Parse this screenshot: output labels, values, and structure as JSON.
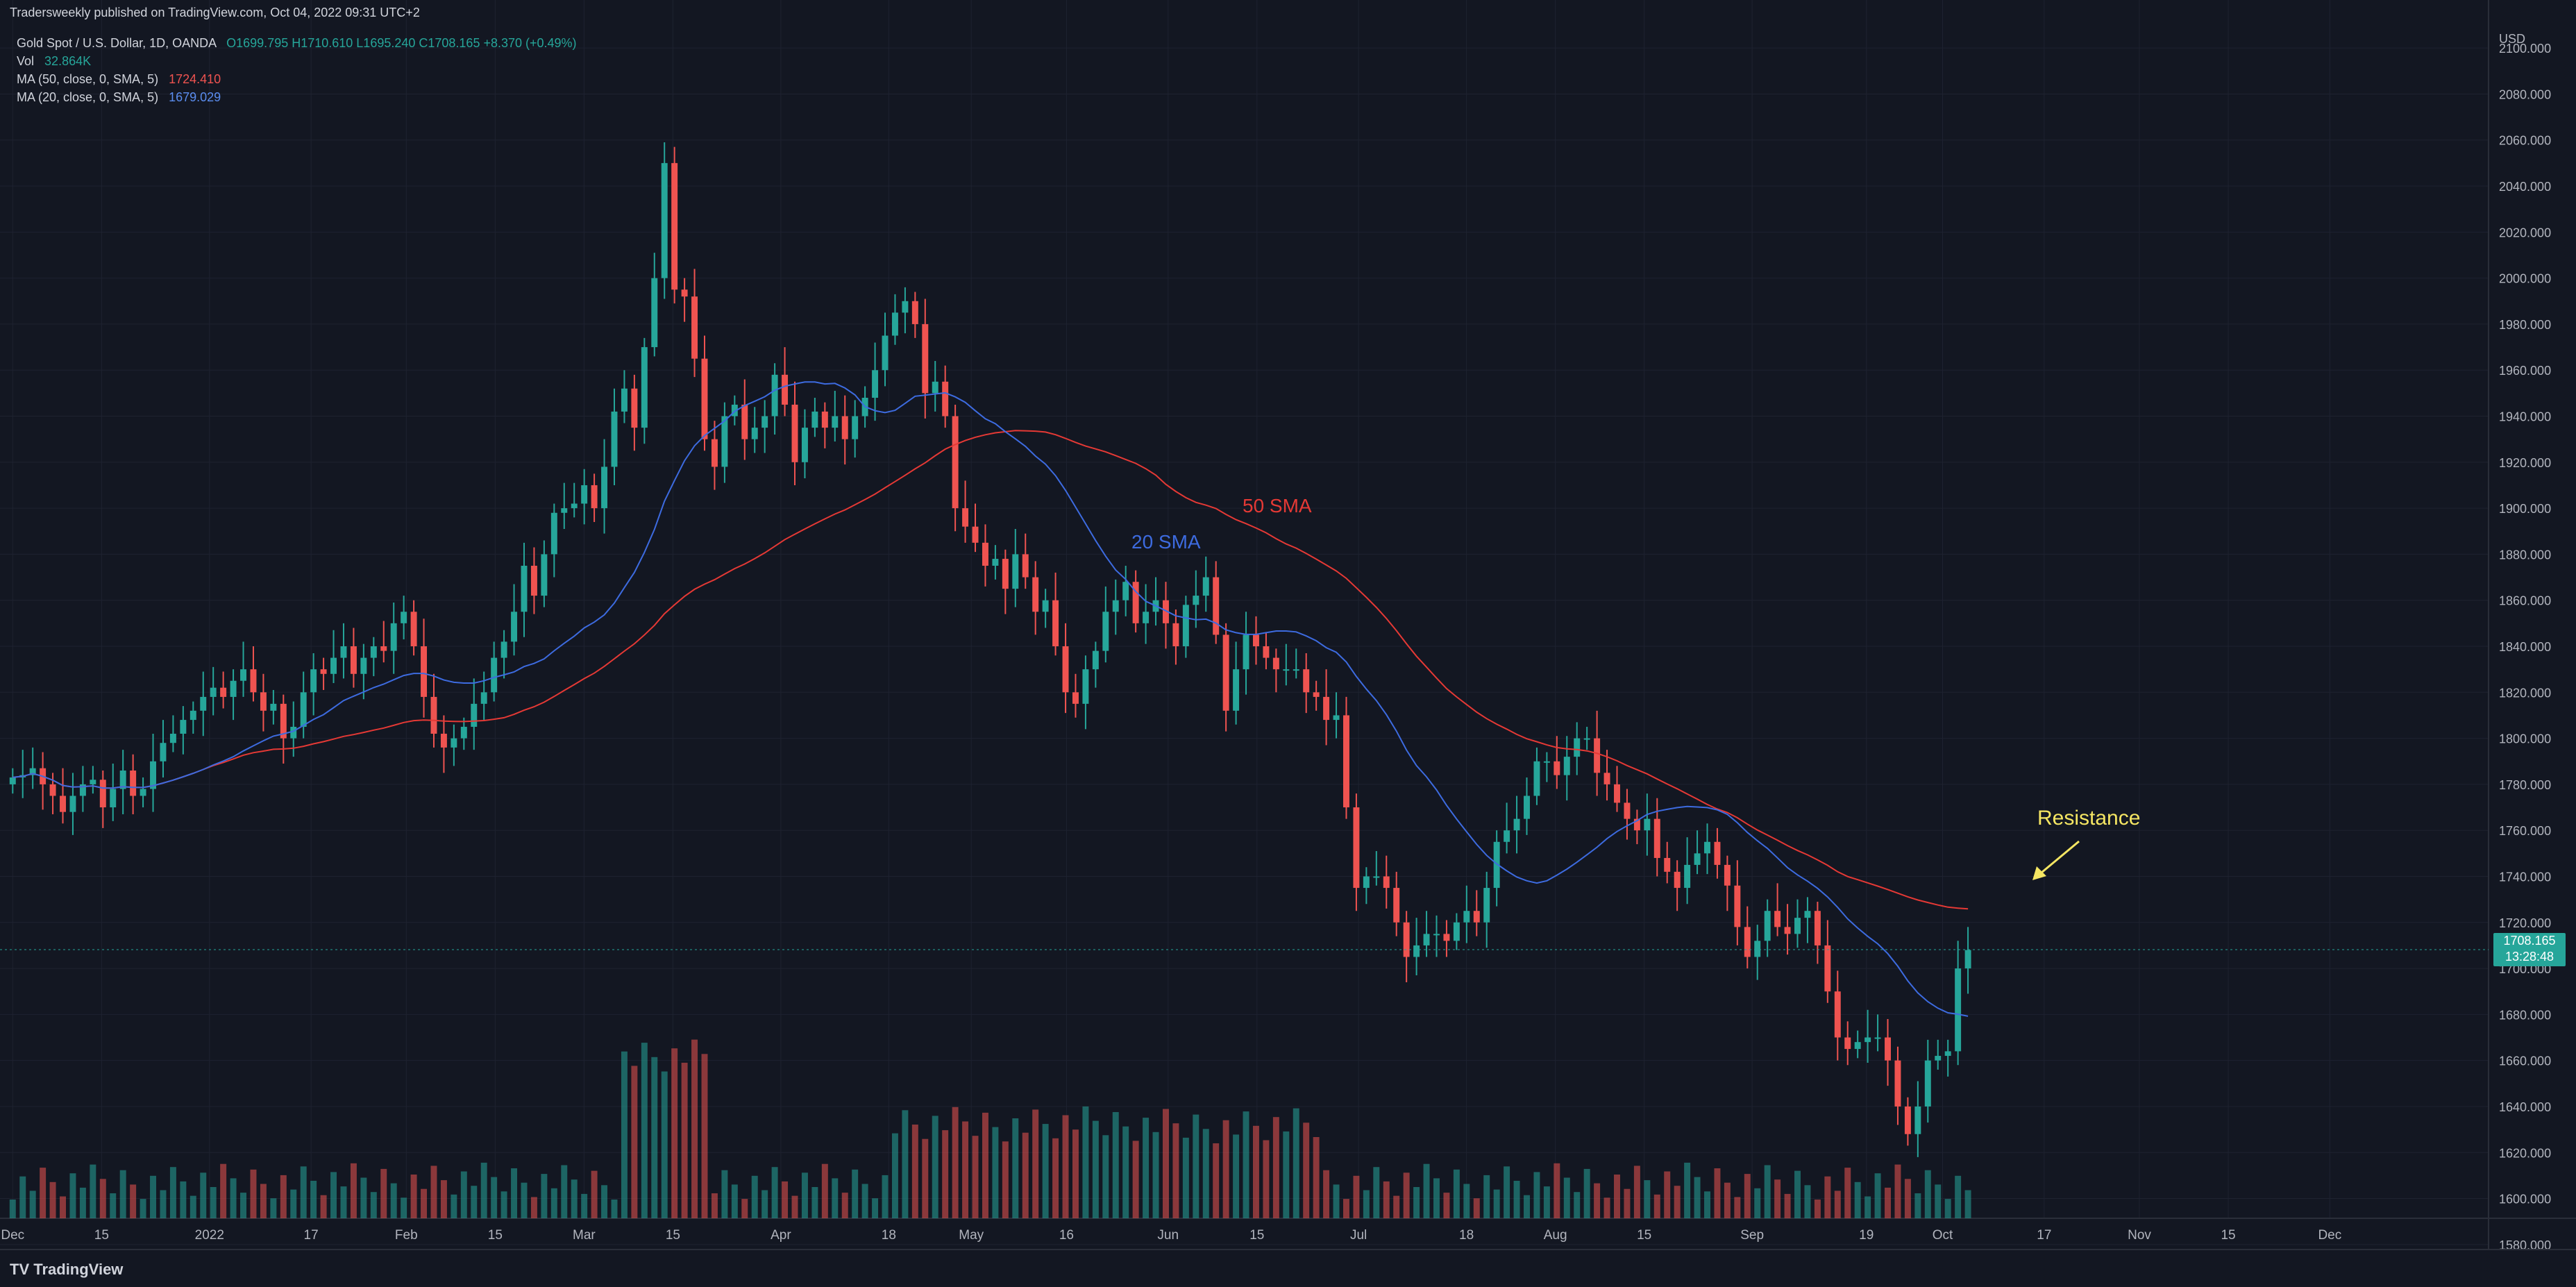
{
  "header": {
    "published": "Tradersweekly published on TradingView.com, Oct 04, 2022 09:31 UTC+2",
    "symbol": "Gold Spot / U.S. Dollar, 1D, OANDA",
    "ohlc": "O1699.795 H1710.610 L1695.240 C1708.165 +8.370 (+0.49%)"
  },
  "indicators": {
    "vol_label": "Vol",
    "vol_value": "32.864K",
    "ma50_label": "MA (50, close, 0, SMA, 5)",
    "ma50_value": "1724.410",
    "ma20_label": "MA (20, close, 0, SMA, 5)",
    "ma20_value": "1679.029"
  },
  "colors": {
    "up": "#26a69a",
    "down": "#ef5350",
    "ma50": "#e53935",
    "ma20": "#3d6be0",
    "annot": "#f5e663",
    "bg": "#131722"
  },
  "price_axis": {
    "currency": "USD",
    "ticks": [
      "2100.000",
      "2080.000",
      "2060.000",
      "2040.000",
      "2020.000",
      "2000.000",
      "1980.000",
      "1960.000",
      "1940.000",
      "1920.000",
      "1900.000",
      "1880.000",
      "1860.000",
      "1840.000",
      "1820.000",
      "1800.000",
      "1780.000",
      "1760.000",
      "1740.000",
      "1720.000",
      "1700.000",
      "1680.000",
      "1660.000",
      "1640.000",
      "1620.000",
      "1600.000",
      "1580.000"
    ],
    "last_price": "1708.165",
    "countdown": "13:28:48"
  },
  "time_axis": {
    "labels": [
      "Dec",
      "15",
      "2022",
      "17",
      "Feb",
      "15",
      "Mar",
      "15",
      "Apr",
      "18",
      "May",
      "16",
      "Jun",
      "15",
      "Jul",
      "18",
      "Aug",
      "15",
      "Sep",
      "19",
      "Oct",
      "17",
      "Nov",
      "15",
      "Dec"
    ]
  },
  "annotations": {
    "sma20": "20 SMA",
    "sma50": "50 SMA",
    "resistance": "Resistance"
  },
  "brand": "TradingView",
  "chart_data": {
    "type": "candlestick",
    "ylim": [
      1570,
      2110
    ],
    "x_range_days": [
      -2,
      390
    ],
    "x_axis_dates": [
      "Dec",
      "15",
      "2022",
      "17",
      "Feb",
      "15",
      "Mar",
      "15",
      "Apr",
      "18",
      "May",
      "16",
      "Jun",
      "15",
      "Jul",
      "18",
      "Aug",
      "15",
      "Sep",
      "19",
      "Oct",
      "17",
      "Nov",
      "15",
      "Dec"
    ],
    "x_axis_days": [
      0,
      14,
      31,
      47,
      62,
      76,
      90,
      104,
      121,
      138,
      151,
      166,
      182,
      196,
      212,
      229,
      243,
      257,
      274,
      292,
      304,
      320,
      335,
      349,
      365
    ],
    "closes": [
      1783,
      1784,
      1787,
      1780,
      1775,
      1768,
      1775,
      1780,
      1782,
      1770,
      1778,
      1786,
      1775,
      1778,
      1790,
      1798,
      1802,
      1808,
      1812,
      1818,
      1822,
      1818,
      1825,
      1830,
      1820,
      1812,
      1815,
      1800,
      1805,
      1820,
      1830,
      1828,
      1835,
      1840,
      1828,
      1835,
      1840,
      1838,
      1850,
      1855,
      1840,
      1818,
      1802,
      1796,
      1800,
      1805,
      1815,
      1820,
      1835,
      1842,
      1855,
      1875,
      1862,
      1880,
      1898,
      1900,
      1902,
      1910,
      1900,
      1918,
      1942,
      1952,
      1935,
      1970,
      2000,
      2050,
      1995,
      1992,
      1965,
      1930,
      1918,
      1940,
      1945,
      1930,
      1935,
      1940,
      1958,
      1945,
      1920,
      1935,
      1942,
      1935,
      1940,
      1930,
      1940,
      1948,
      1960,
      1975,
      1985,
      1990,
      1980,
      1950,
      1955,
      1940,
      1900,
      1892,
      1885,
      1875,
      1878,
      1865,
      1880,
      1870,
      1855,
      1860,
      1840,
      1820,
      1815,
      1830,
      1838,
      1855,
      1860,
      1868,
      1850,
      1855,
      1860,
      1850,
      1840,
      1858,
      1862,
      1870,
      1845,
      1812,
      1830,
      1845,
      1840,
      1835,
      1830,
      1830,
      1830,
      1820,
      1818,
      1808,
      1810,
      1770,
      1735,
      1740,
      1740,
      1735,
      1720,
      1705,
      1710,
      1715,
      1715,
      1712,
      1720,
      1725,
      1720,
      1735,
      1755,
      1760,
      1765,
      1775,
      1790,
      1790,
      1784,
      1792,
      1800,
      1800,
      1785,
      1780,
      1772,
      1765,
      1760,
      1765,
      1748,
      1742,
      1735,
      1745,
      1750,
      1755,
      1745,
      1736,
      1718,
      1705,
      1712,
      1725,
      1718,
      1715,
      1722,
      1725,
      1710,
      1690,
      1670,
      1665,
      1668,
      1670,
      1670,
      1660,
      1640,
      1628,
      1640,
      1660,
      1662,
      1664,
      1700,
      1708
    ],
    "ma20_range": [
      1679,
      1960
    ],
    "ma50_range": [
      1724,
      1945
    ],
    "volume_relative_peak_day": 87,
    "last_close": 1708.165
  }
}
